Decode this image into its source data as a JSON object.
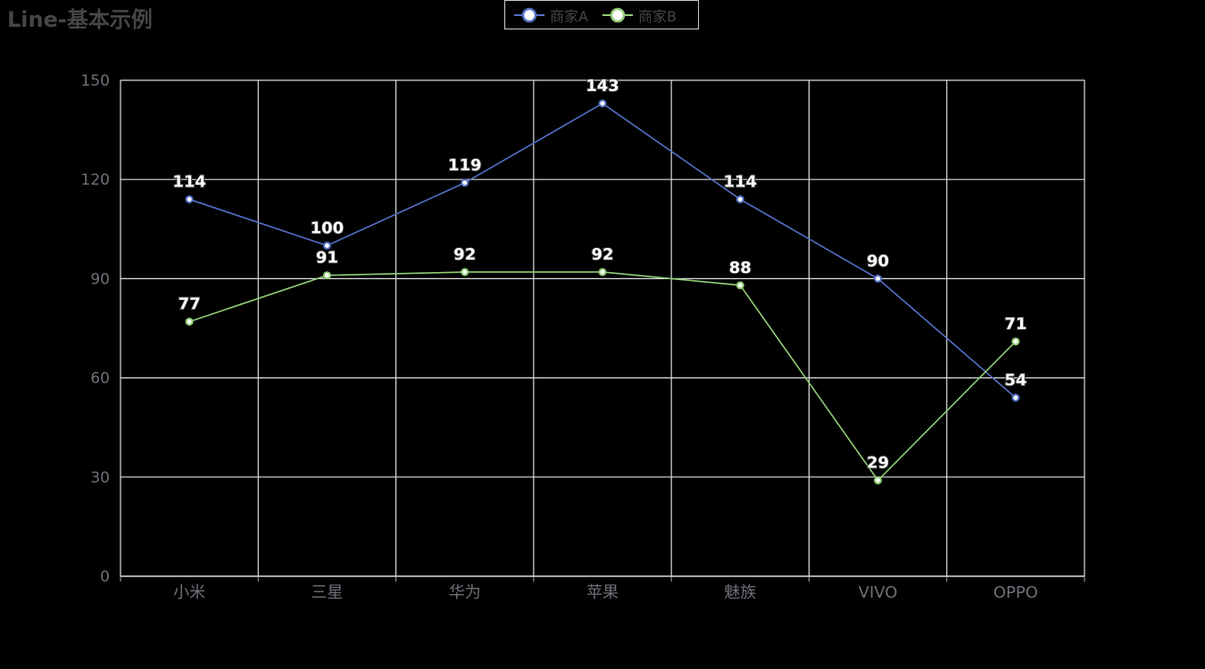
{
  "title": "Line-基本示例",
  "legend": {
    "items": [
      {
        "label": "商家A",
        "color": "#5470c6"
      },
      {
        "label": "商家B",
        "color": "#91cc75"
      }
    ]
  },
  "chart_data": {
    "type": "line",
    "title": "Line-基本示例",
    "xlabel": "",
    "ylabel": "",
    "categories": [
      "小米",
      "三星",
      "华为",
      "苹果",
      "魅族",
      "VIVO",
      "OPPO"
    ],
    "ylim": [
      0,
      150
    ],
    "yticks": [
      0,
      30,
      60,
      90,
      120,
      150
    ],
    "grid": true,
    "legend_position": "top-center",
    "series": [
      {
        "name": "商家A",
        "color": "#5470c6",
        "values": [
          114,
          100,
          119,
          143,
          114,
          90,
          54
        ]
      },
      {
        "name": "商家B",
        "color": "#91cc75",
        "values": [
          77,
          91,
          92,
          92,
          88,
          29,
          71
        ]
      }
    ]
  }
}
